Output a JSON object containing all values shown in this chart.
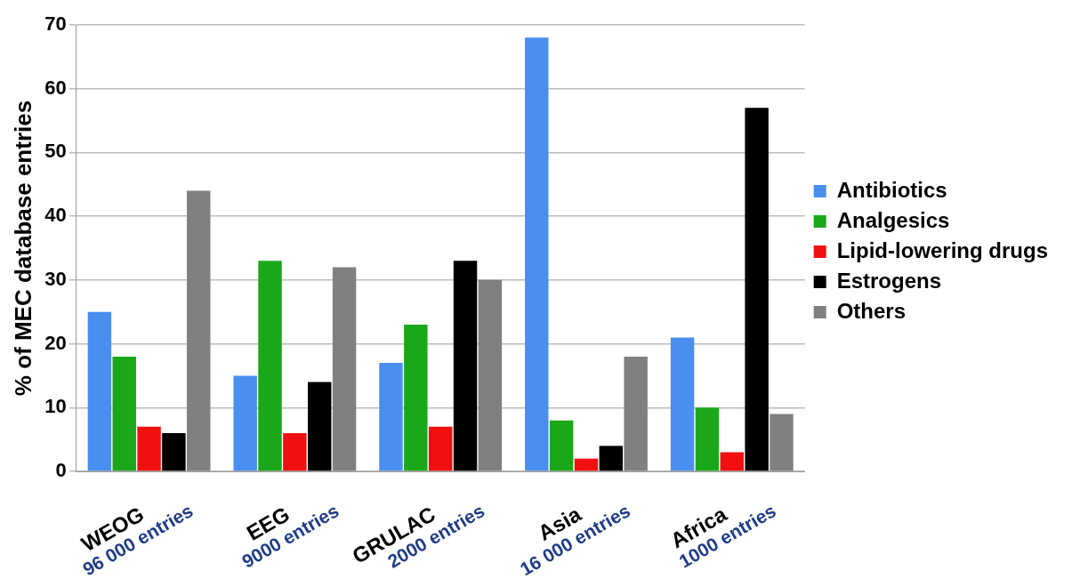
{
  "chart_data": {
    "type": "bar",
    "ylabel": "% of MEC database entries",
    "categories": [
      "WEOG\n96 000 entries",
      "EEG\n9000 entries",
      "GRULAC\n2000 entries",
      "Asia\n16 000 entries",
      "Africa\n1000 entries"
    ],
    "series": [
      {
        "name": "Antibiotics",
        "color": "#4a8ef0",
        "values": [
          25,
          15,
          17,
          68,
          21
        ]
      },
      {
        "name": "Analgesics",
        "color": "#1aa81a",
        "values": [
          18,
          33,
          23,
          8,
          10
        ]
      },
      {
        "name": "Lipid-lowering drugs",
        "color": "#f01010",
        "values": [
          7,
          6,
          7,
          2,
          3
        ]
      },
      {
        "name": "Estrogens",
        "color": "#000000",
        "values": [
          6,
          14,
          33,
          4,
          57
        ]
      },
      {
        "name": "Others",
        "color": "#808080",
        "values": [
          44,
          32,
          30,
          18,
          9
        ]
      }
    ],
    "ylim": [
      0,
      70
    ],
    "yticks": [
      0,
      10,
      20,
      30,
      40,
      50,
      60,
      70
    ],
    "grid": "y",
    "legend": "right"
  }
}
